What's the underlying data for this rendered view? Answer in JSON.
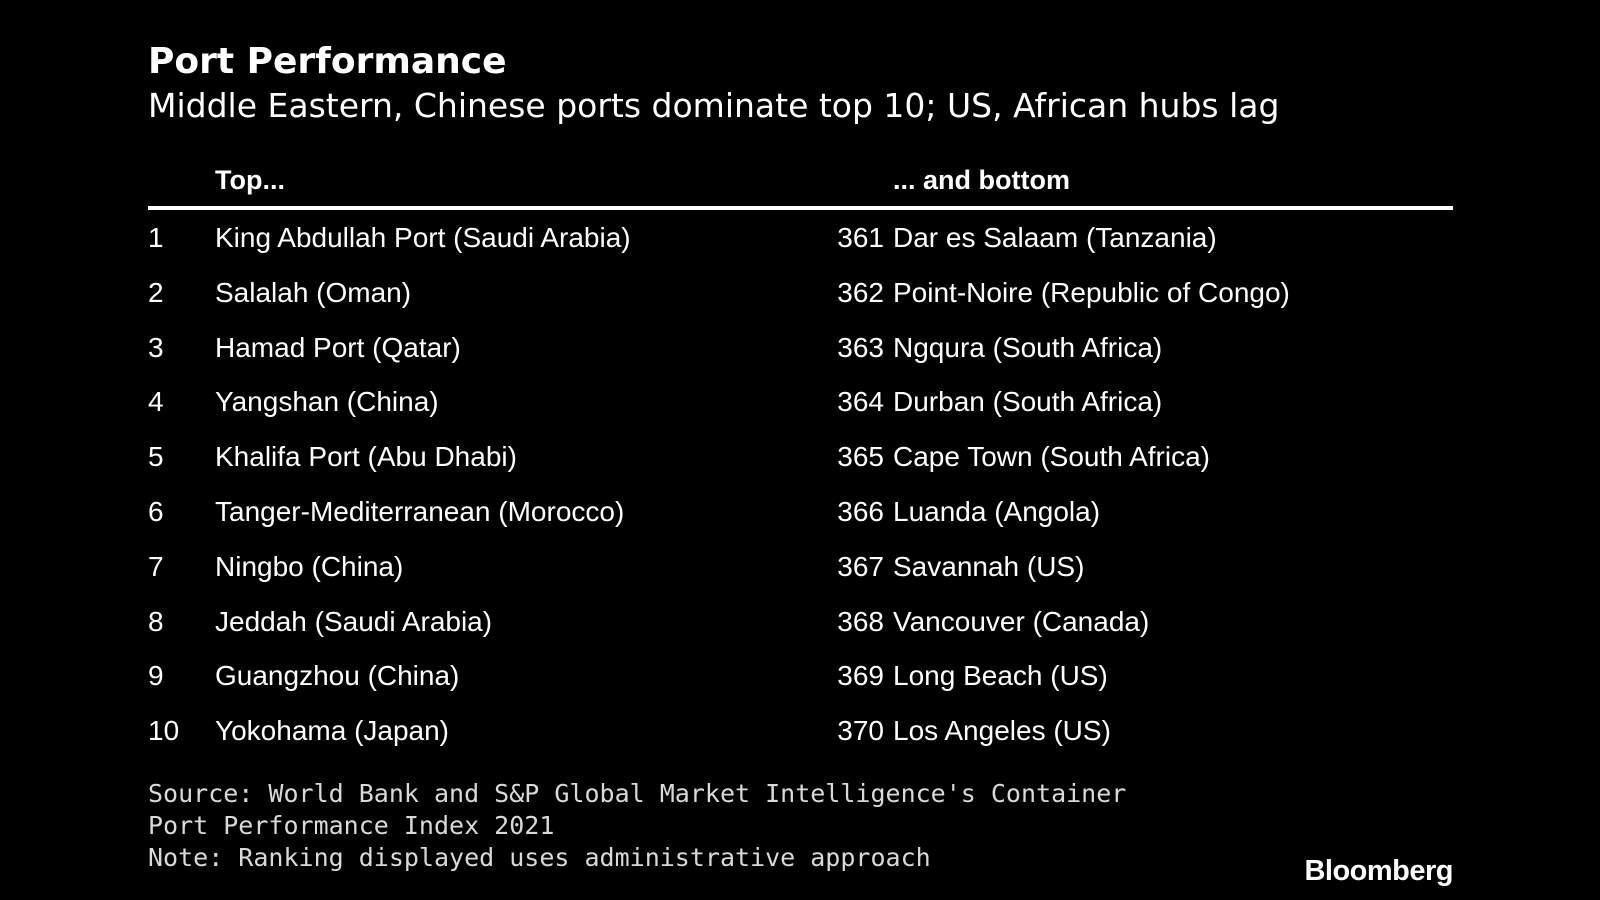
{
  "title": "Port Performance",
  "subtitle": "Middle Eastern, Chinese ports dominate top 10; US, African hubs lag",
  "chart_data": {
    "type": "table",
    "columns": [
      "Top...",
      "... and bottom"
    ],
    "rows": [
      {
        "top_rank": "1",
        "top_port": "King Abdullah Port (Saudi Arabia)",
        "bottom_rank": "361",
        "bottom_port": "Dar es Salaam (Tanzania)"
      },
      {
        "top_rank": "2",
        "top_port": "Salalah (Oman)",
        "bottom_rank": "362",
        "bottom_port": "Point-Noire (Republic of Congo)"
      },
      {
        "top_rank": "3",
        "top_port": "Hamad Port (Qatar)",
        "bottom_rank": "363",
        "bottom_port": "Ngqura (South Africa)"
      },
      {
        "top_rank": "4",
        "top_port": "Yangshan (China)",
        "bottom_rank": "364",
        "bottom_port": "Durban (South Africa)"
      },
      {
        "top_rank": "5",
        "top_port": "Khalifa Port (Abu Dhabi)",
        "bottom_rank": "365",
        "bottom_port": "Cape Town (South Africa)"
      },
      {
        "top_rank": "6",
        "top_port": "Tanger-Mediterranean (Morocco)",
        "bottom_rank": "366",
        "bottom_port": "Luanda (Angola)"
      },
      {
        "top_rank": "7",
        "top_port": "Ningbo (China)",
        "bottom_rank": "367",
        "bottom_port": "Savannah (US)"
      },
      {
        "top_rank": "8",
        "top_port": "Jeddah (Saudi Arabia)",
        "bottom_rank": "368",
        "bottom_port": "Vancouver (Canada)"
      },
      {
        "top_rank": "9",
        "top_port": "Guangzhou (China)",
        "bottom_rank": "369",
        "bottom_port": "Long Beach (US)"
      },
      {
        "top_rank": "10",
        "top_port": "Yokohama (Japan)",
        "bottom_rank": "370",
        "bottom_port": "Los Angeles (US)"
      }
    ]
  },
  "footer": {
    "source": "Source: World Bank and S&P Global Market Intelligence's Container Port Performance Index 2021",
    "note": "Note: Ranking displayed uses administrative approach"
  },
  "logo": "Bloomberg",
  "colors": {
    "background": "#000000",
    "text": "#ffffff",
    "footer_text": "#d9d9d9"
  }
}
